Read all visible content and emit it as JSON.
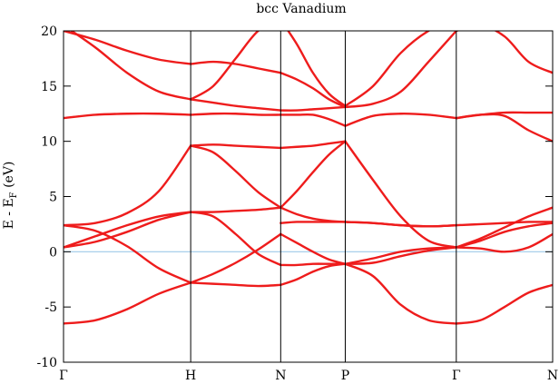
{
  "chart_data": {
    "type": "line",
    "title": "bcc Vanadium",
    "xlabel": "",
    "ylabel_main": "E - E",
    "ylabel_sub": "F",
    "ylabel_unit": " (eV)",
    "ylim": [
      -10,
      20
    ],
    "yticks": [
      -10,
      -5,
      0,
      5,
      10,
      15,
      20
    ],
    "xlim": [
      0,
      1
    ],
    "grid": false,
    "fermi_level": 0,
    "colors": {
      "bands": "#ee1c1c",
      "fermi": "#9ecae8",
      "axes": "#000000"
    },
    "k_points": [
      {
        "label": "Γ",
        "pos": 0.0
      },
      {
        "label": "H",
        "pos": 0.26
      },
      {
        "label": "N",
        "pos": 0.444
      },
      {
        "label": "P",
        "pos": 0.576
      },
      {
        "label": "Γ",
        "pos": 0.803
      },
      {
        "label": "N",
        "pos": 1.0
      }
    ],
    "segments": [
      {
        "from": "Γ",
        "to": "H",
        "bands": [
          [
            -6.5,
            -6.2,
            -5.2,
            -3.8,
            -2.8
          ],
          [
            2.4,
            1.9,
            0.5,
            -1.5,
            -2.8
          ],
          [
            0.4,
            0.9,
            1.8,
            2.9,
            3.6
          ],
          [
            0.4,
            1.4,
            2.4,
            3.2,
            3.6
          ],
          [
            2.4,
            2.6,
            3.5,
            5.5,
            9.6
          ],
          [
            12.1,
            12.4,
            12.5,
            12.5,
            12.4
          ],
          [
            20.0,
            19.2,
            18.2,
            17.4,
            17.0
          ],
          [
            20.5,
            18.5,
            16.2,
            14.5,
            13.8
          ]
        ]
      },
      {
        "from": "H",
        "to": "N",
        "bands": [
          [
            -2.8,
            -2.9,
            -3.0,
            -3.1,
            -3.0
          ],
          [
            -2.8,
            -2.0,
            -1.0,
            0.2,
            1.6
          ],
          [
            3.6,
            3.6,
            3.7,
            3.8,
            4.0
          ],
          [
            3.6,
            3.2,
            1.6,
            -0.2,
            -1.2
          ],
          [
            9.6,
            9.0,
            7.3,
            5.4,
            4.0
          ],
          [
            9.6,
            9.7,
            9.6,
            9.5,
            9.4
          ],
          [
            12.4,
            12.5,
            12.5,
            12.4,
            12.4
          ],
          [
            13.8,
            13.5,
            13.2,
            13.0,
            12.8
          ],
          [
            17.0,
            17.2,
            17.0,
            16.6,
            16.2
          ],
          [
            13.8,
            15.0,
            17.5,
            20.0,
            21.0
          ]
        ]
      },
      {
        "from": "N",
        "to": "P",
        "bands": [
          [
            -3.0,
            -2.5,
            -1.8,
            -1.3,
            -1.1
          ],
          [
            1.6,
            0.8,
            0.0,
            -0.7,
            -1.1
          ],
          [
            -1.2,
            -1.2,
            -1.1,
            -1.1,
            -1.1
          ],
          [
            4.0,
            3.4,
            3.0,
            2.8,
            2.7
          ],
          [
            2.6,
            2.7,
            2.7,
            2.7,
            2.7
          ],
          [
            9.4,
            9.5,
            9.6,
            9.8,
            10.0
          ],
          [
            4.0,
            5.5,
            7.2,
            8.8,
            10.0
          ],
          [
            12.4,
            12.4,
            12.4,
            12.0,
            11.4
          ],
          [
            12.8,
            12.8,
            12.9,
            13.0,
            13.1
          ],
          [
            16.2,
            15.6,
            14.8,
            13.8,
            13.1
          ],
          [
            21.0,
            18.8,
            16.2,
            14.3,
            13.2
          ]
        ]
      },
      {
        "from": "P",
        "to": "Γ",
        "bands": [
          [
            -1.1,
            -2.2,
            -4.8,
            -6.2,
            -6.5
          ],
          [
            -1.1,
            -1.0,
            -0.4,
            0.1,
            0.4
          ],
          [
            -1.1,
            -0.6,
            0.0,
            0.3,
            0.4
          ],
          [
            2.7,
            2.6,
            2.4,
            2.3,
            2.4
          ],
          [
            2.7,
            2.6,
            2.4,
            2.3,
            2.4
          ],
          [
            10.0,
            6.5,
            3.2,
            1.0,
            0.4
          ],
          [
            11.4,
            12.3,
            12.5,
            12.4,
            12.1
          ],
          [
            13.1,
            13.4,
            14.5,
            17.2,
            20.0
          ],
          [
            13.2,
            15.0,
            18.0,
            20.0,
            21.0
          ]
        ]
      },
      {
        "from": "Γ",
        "to": "N",
        "bands": [
          [
            -6.5,
            -6.2,
            -5.0,
            -3.7,
            -3.0
          ],
          [
            0.4,
            0.3,
            0.0,
            0.4,
            1.6
          ],
          [
            0.4,
            1.0,
            1.8,
            2.3,
            2.6
          ],
          [
            0.4,
            1.2,
            2.2,
            3.2,
            4.0
          ],
          [
            2.4,
            2.5,
            2.6,
            2.7,
            2.7
          ],
          [
            12.1,
            12.4,
            12.6,
            12.6,
            12.6
          ],
          [
            12.1,
            12.4,
            12.3,
            11.0,
            10.0
          ],
          [
            20.0,
            20.5,
            19.5,
            17.2,
            16.2
          ]
        ]
      }
    ]
  }
}
